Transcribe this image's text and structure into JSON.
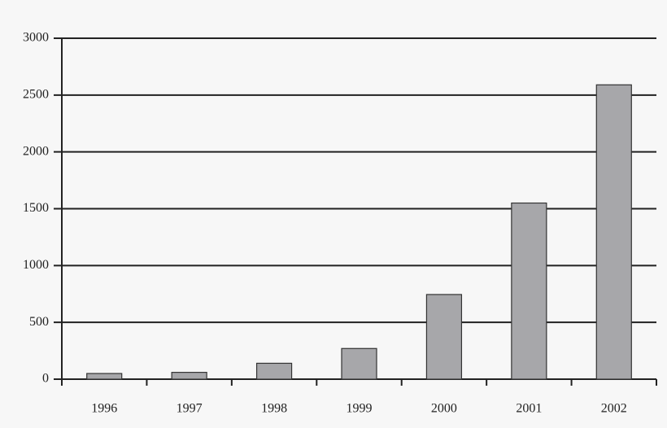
{
  "chart_data": {
    "type": "bar",
    "categories": [
      "1996",
      "1997",
      "1998",
      "1999",
      "2000",
      "2001",
      "2002"
    ],
    "values": [
      50,
      60,
      140,
      270,
      745,
      1550,
      2590
    ],
    "color": "#a7a7aa",
    "ylim": [
      0,
      3000
    ],
    "yticks": [
      0,
      500,
      1000,
      1500,
      2000,
      2500,
      3000
    ],
    "grid": true
  }
}
